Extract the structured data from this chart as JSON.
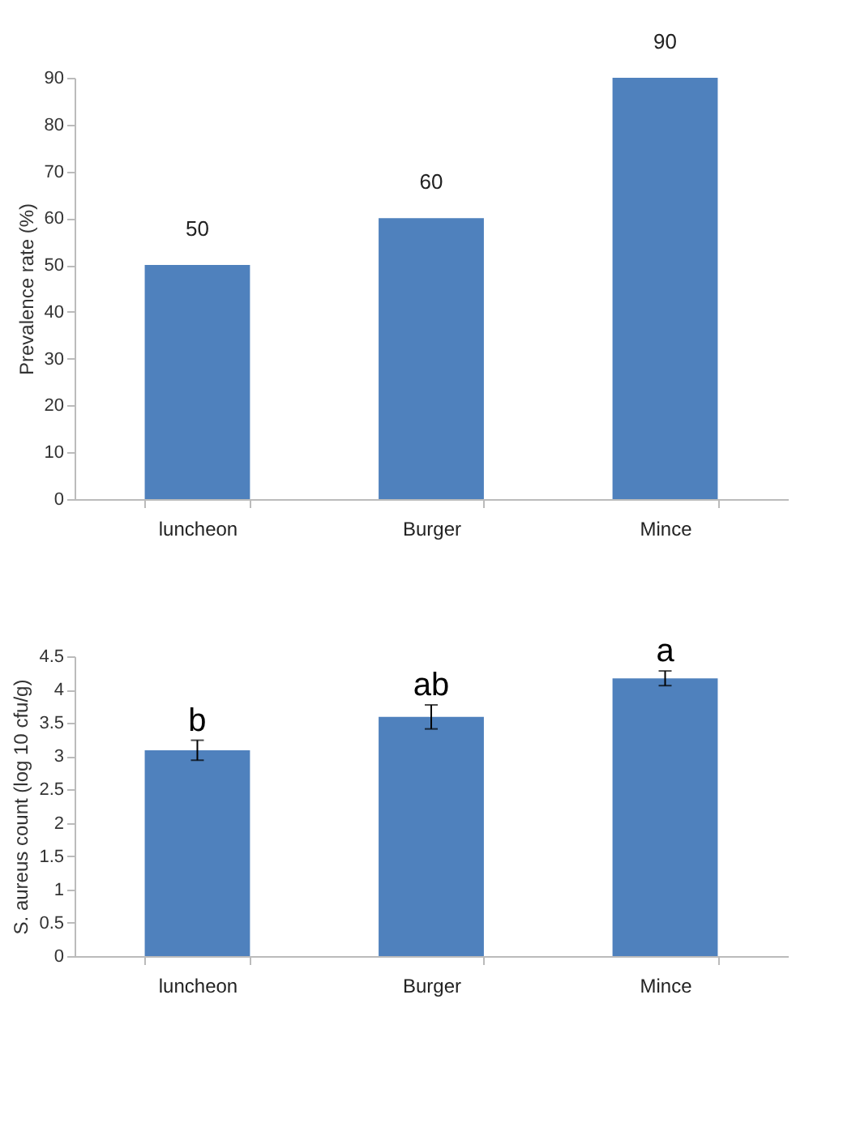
{
  "chart_data": [
    {
      "type": "bar",
      "categories": [
        "luncheon",
        "Burger",
        "Mince"
      ],
      "values": [
        50,
        60,
        90
      ],
      "color": "#4f81bd",
      "ylabel": "Prevalence rate (%)",
      "ylim": [
        0,
        90
      ],
      "yticks": [
        0,
        10,
        20,
        30,
        40,
        50,
        60,
        70,
        80,
        90
      ],
      "data_labels": true,
      "grid": false
    },
    {
      "type": "bar",
      "categories": [
        "luncheon",
        "Burger",
        "Mince"
      ],
      "values": [
        3.09,
        3.59,
        4.17
      ],
      "errors": [
        0.15,
        0.18,
        0.11
      ],
      "color": "#4f81bd",
      "ylabel": "S. aureus count (log 10 cfu/g)",
      "ylim": [
        0,
        4.5
      ],
      "yticks": [
        0,
        0.5,
        1,
        1.5,
        2,
        2.5,
        3,
        3.5,
        4,
        4.5
      ],
      "grid": false,
      "annotations": [
        {
          "text": "b",
          "x": "luncheon",
          "y": 3.24
        },
        {
          "text": "ab",
          "x": "Burger",
          "y": 3.77
        },
        {
          "text": "a",
          "x": "Mince",
          "y": 4.28
        }
      ]
    }
  ]
}
